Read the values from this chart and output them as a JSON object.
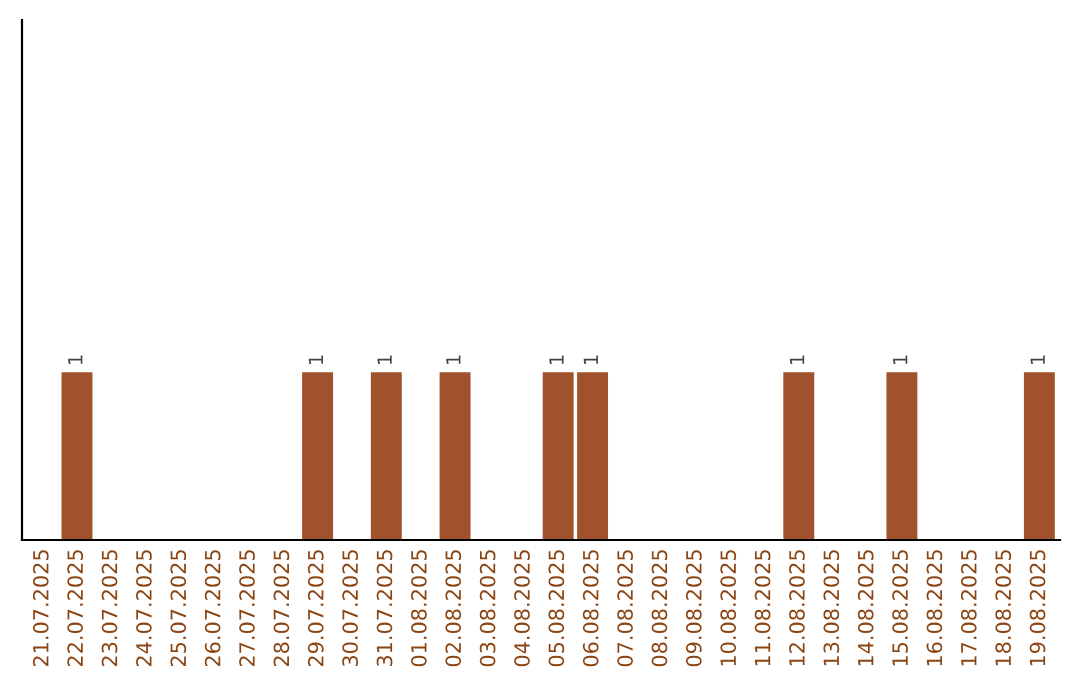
{
  "chart_data": {
    "type": "bar",
    "categories": [
      "21.07.2025",
      "22.07.2025",
      "23.07.2025",
      "24.07.2025",
      "25.07.2025",
      "26.07.2025",
      "27.07.2025",
      "28.07.2025",
      "29.07.2025",
      "30.07.2025",
      "31.07.2025",
      "01.08.2025",
      "02.08.2025",
      "03.08.2025",
      "04.08.2025",
      "05.08.2025",
      "06.08.2025",
      "07.08.2025",
      "08.08.2025",
      "09.08.2025",
      "10.08.2025",
      "11.08.2025",
      "12.08.2025",
      "13.08.2025",
      "14.08.2025",
      "15.08.2025",
      "16.08.2025",
      "17.08.2025",
      "18.08.2025",
      "19.08.2025"
    ],
    "values": [
      0,
      1,
      0,
      0,
      0,
      0,
      0,
      0,
      1,
      0,
      1,
      0,
      1,
      0,
      0,
      1,
      1,
      0,
      0,
      0,
      0,
      0,
      1,
      0,
      0,
      1,
      0,
      0,
      0,
      1
    ],
    "value_labels": [
      null,
      "1",
      null,
      null,
      null,
      null,
      null,
      null,
      "1",
      null,
      "1",
      null,
      "1",
      null,
      null,
      "1",
      "1",
      null,
      null,
      null,
      null,
      null,
      "1",
      null,
      null,
      "1",
      null,
      null,
      null,
      "1"
    ],
    "color": "#a0522d",
    "ylim": [
      0,
      3.1
    ],
    "tick_labels": "x",
    "grid": false
  }
}
